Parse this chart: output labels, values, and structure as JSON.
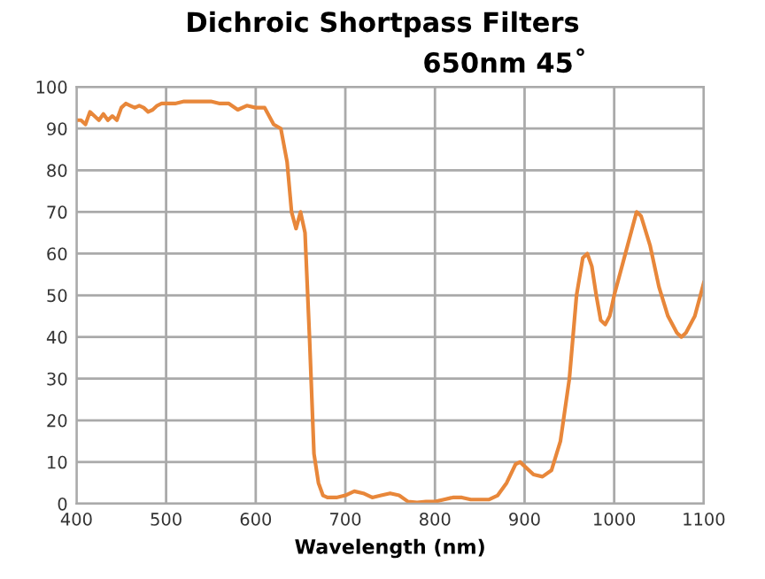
{
  "chart_data": {
    "type": "line",
    "title": "Dichroic Shortpass Filters",
    "subtitle": "650nm 45˚",
    "xlabel": "Wavelength (nm)",
    "xlim": [
      400,
      1100
    ],
    "xticks": [
      400,
      500,
      600,
      700,
      800,
      900,
      1000,
      1100
    ],
    "ylim": [
      0,
      100
    ],
    "yticks": [
      0,
      10,
      20,
      30,
      40,
      50,
      60,
      70,
      80,
      90,
      100
    ],
    "grid": true,
    "marker": "none",
    "line_style": "solid",
    "series": [
      {
        "color": "#e8873a",
        "x": [
          400,
          405,
          410,
          415,
          420,
          425,
          430,
          435,
          440,
          445,
          450,
          455,
          460,
          465,
          470,
          475,
          480,
          485,
          490,
          495,
          500,
          510,
          520,
          530,
          540,
          550,
          560,
          570,
          580,
          590,
          600,
          610,
          620,
          628,
          635,
          640,
          645,
          650,
          655,
          660,
          665,
          670,
          675,
          680,
          690,
          700,
          710,
          720,
          730,
          740,
          750,
          760,
          770,
          780,
          790,
          800,
          810,
          820,
          830,
          840,
          850,
          860,
          870,
          880,
          890,
          895,
          900,
          910,
          920,
          930,
          940,
          950,
          958,
          965,
          970,
          975,
          980,
          985,
          990,
          995,
          1000,
          1010,
          1020,
          1025,
          1030,
          1040,
          1050,
          1060,
          1070,
          1075,
          1080,
          1090,
          1100
        ],
        "values": [
          92,
          92,
          91,
          94,
          93,
          92,
          93.5,
          92,
          93,
          92,
          95,
          96,
          95.5,
          95,
          95.5,
          95,
          94,
          94.5,
          95.5,
          96,
          96,
          96,
          96.5,
          96.5,
          96.5,
          96.5,
          96,
          96,
          94.5,
          95.5,
          95,
          95,
          91,
          90,
          82,
          70,
          66,
          70,
          65,
          40,
          12,
          5,
          2,
          1.5,
          1.5,
          2,
          3,
          2.5,
          1.5,
          2,
          2.5,
          2,
          0.5,
          0.3,
          0.5,
          0.5,
          1,
          1.5,
          1.5,
          1,
          1,
          1,
          2,
          5,
          9.5,
          10,
          9,
          7,
          6.5,
          8,
          15,
          30,
          50,
          59,
          60,
          57,
          50,
          44,
          43,
          45,
          50,
          58,
          66,
          70,
          69,
          62,
          52,
          45,
          41,
          40,
          41,
          45,
          53
        ]
      }
    ]
  }
}
